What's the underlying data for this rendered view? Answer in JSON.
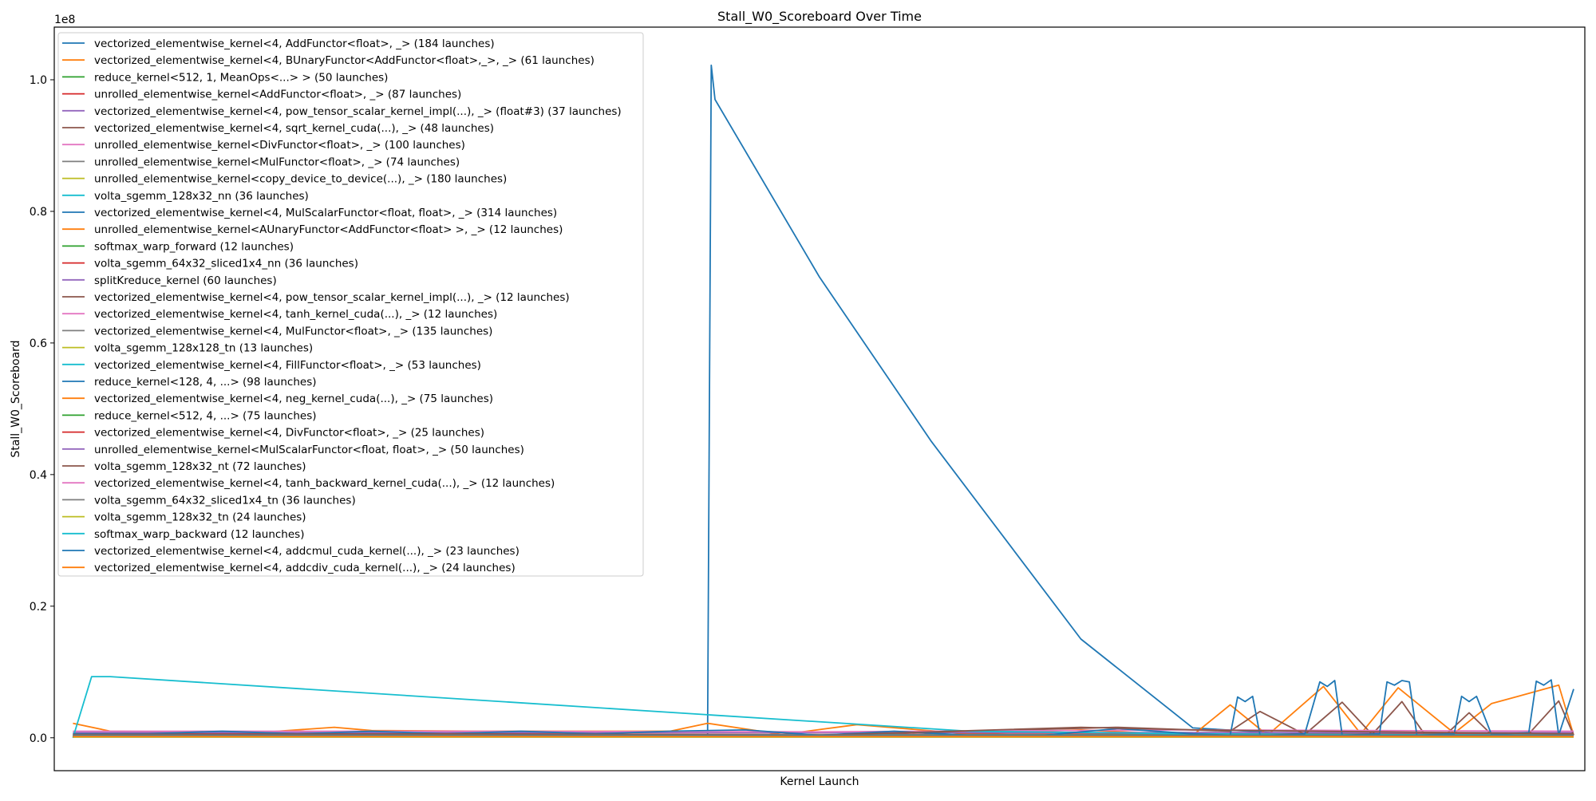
{
  "chart_data": {
    "type": "line",
    "title": "Stall_W0_Scoreboard Over Time",
    "xlabel": "Kernel Launch",
    "ylabel": "Stall_W0_Scoreboard",
    "y_scale_label": "1e8",
    "ylim": [
      -0.05,
      1.08
    ],
    "yticks": [
      0.0,
      0.2,
      0.4,
      0.6,
      0.8,
      1.0
    ],
    "ytick_labels": [
      "0.0",
      "0.2",
      "0.4",
      "0.6",
      "0.8",
      "1.0"
    ],
    "xlim": [
      -5,
      405
    ],
    "xticks": [],
    "grid": false,
    "legend_position": "upper-left",
    "series": [
      {
        "name": "vectorized_elementwise_kernel<4, AddFunctor<float>, _> (184 launches)",
        "color": "#1f77b4",
        "x": [
          0,
          40,
          75,
          110,
          160,
          170,
          171,
          172,
          200,
          230,
          270,
          300,
          330,
          355,
          375,
          398,
          402
        ],
        "y": [
          0.002,
          0.003,
          0.006,
          0.004,
          0.003,
          0.004,
          1.022,
          0.97,
          0.7,
          0.45,
          0.15,
          0.015,
          0.005,
          0.004,
          0.003,
          0.003,
          0.003
        ]
      },
      {
        "name": "vectorized_elementwise_kernel<4, BUnaryFunctor<AddFunctor<float>,_>, _> (61 launches)",
        "color": "#ff7f0e",
        "x": [
          0,
          10,
          50,
          70,
          80,
          110,
          160,
          170,
          190,
          210,
          240,
          270,
          300,
          310,
          320,
          335,
          345,
          355,
          370,
          380,
          398,
          402
        ],
        "y": [
          0.022,
          0.01,
          0.008,
          0.016,
          0.011,
          0.01,
          0.01,
          0.022,
          0.005,
          0.02,
          0.006,
          0.012,
          0.004,
          0.05,
          0.004,
          0.078,
          0.006,
          0.076,
          0.007,
          0.052,
          0.08,
          0.004
        ]
      },
      {
        "name": "reduce_kernel<512, 1, MeanOps<...> > (50 launches)",
        "color": "#2ca02c",
        "x": [
          0,
          100,
          200,
          300,
          402
        ],
        "y": [
          0.003,
          0.003,
          0.003,
          0.003,
          0.003
        ]
      },
      {
        "name": "unrolled_elementwise_kernel<AddFunctor<float>, _> (87 launches)",
        "color": "#d62728",
        "x": [
          0,
          100,
          200,
          300,
          402
        ],
        "y": [
          0.006,
          0.006,
          0.005,
          0.006,
          0.006
        ]
      },
      {
        "name": "vectorized_elementwise_kernel<4, pow_tensor_scalar_kernel_impl(...), _> (float#3) (37 launches)",
        "color": "#9467bd",
        "x": [
          0,
          100,
          200,
          300,
          402
        ],
        "y": [
          0.008,
          0.008,
          0.008,
          0.008,
          0.008
        ]
      },
      {
        "name": "vectorized_elementwise_kernel<4, sqrt_kernel_cuda(...), _> (48 launches)",
        "color": "#8c564b",
        "x": [
          0,
          200,
          280,
          310,
          318,
          330,
          340,
          348,
          356,
          362,
          368,
          374,
          380,
          390,
          398,
          402
        ],
        "y": [
          0.004,
          0.004,
          0.016,
          0.01,
          0.04,
          0.005,
          0.054,
          0.005,
          0.055,
          0.006,
          0.006,
          0.038,
          0.005,
          0.006,
          0.056,
          0.004
        ]
      },
      {
        "name": "unrolled_elementwise_kernel<DivFunctor<float>, _> (100 launches)",
        "color": "#e377c2",
        "x": [
          0,
          100,
          200,
          300,
          402
        ],
        "y": [
          0.01,
          0.01,
          0.009,
          0.012,
          0.01
        ]
      },
      {
        "name": "unrolled_elementwise_kernel<MulFunctor<float>, _> (74 launches)",
        "color": "#7f7f7f",
        "x": [
          0,
          100,
          200,
          300,
          402
        ],
        "y": [
          0.005,
          0.005,
          0.005,
          0.005,
          0.005
        ]
      },
      {
        "name": "unrolled_elementwise_kernel<copy_device_to_device(...), _> (180 launches)",
        "color": "#bcbd22",
        "x": [
          0,
          100,
          200,
          300,
          402
        ],
        "y": [
          0.002,
          0.002,
          0.002,
          0.002,
          0.002
        ]
      },
      {
        "name": "volta_sgemm_128x32_nn (36 launches)",
        "color": "#17becf",
        "x": [
          0,
          5,
          10,
          170,
          240,
          300,
          402
        ],
        "y": [
          0.0,
          0.093,
          0.093,
          0.035,
          0.01,
          0.006,
          0.004
        ]
      },
      {
        "name": "vectorized_elementwise_kernel<4, MulScalarFunctor<float, float>, _> (314 launches)",
        "color": "#1f77b4",
        "x": [
          0,
          20,
          40,
          60,
          80,
          100,
          120,
          140,
          160,
          180,
          200,
          220,
          240,
          260,
          280,
          300,
          310,
          312,
          314,
          316,
          318,
          320,
          330,
          334,
          336,
          338,
          340,
          350,
          352,
          354,
          356,
          358,
          360,
          370,
          372,
          374,
          376,
          380,
          390,
          392,
          394,
          396,
          398,
          402
        ],
        "y": [
          0.006,
          0.006,
          0.01,
          0.006,
          0.01,
          0.006,
          0.01,
          0.006,
          0.01,
          0.012,
          0.004,
          0.01,
          0.004,
          0.004,
          0.014,
          0.006,
          0.004,
          0.062,
          0.055,
          0.063,
          0.004,
          0.004,
          0.006,
          0.085,
          0.078,
          0.087,
          0.004,
          0.006,
          0.085,
          0.08,
          0.087,
          0.085,
          0.004,
          0.006,
          0.063,
          0.055,
          0.063,
          0.005,
          0.008,
          0.086,
          0.08,
          0.088,
          0.004,
          0.074
        ]
      },
      {
        "name": "unrolled_elementwise_kernel<AUnaryFunctor<AddFunctor<float> >, _> (12 launches)",
        "color": "#ff7f0e",
        "x": [
          0,
          100,
          200,
          300,
          402
        ],
        "y": [
          0.003,
          0.004,
          0.003,
          0.004,
          0.003
        ]
      },
      {
        "name": "softmax_warp_forward (12 launches)",
        "color": "#2ca02c",
        "x": [
          0,
          100,
          200,
          300,
          402
        ],
        "y": [
          0.004,
          0.004,
          0.004,
          0.004,
          0.004
        ]
      },
      {
        "name": "volta_sgemm_64x32_sliced1x4_nn (36 launches)",
        "color": "#d62728",
        "x": [
          0,
          100,
          200,
          300,
          402
        ],
        "y": [
          0.002,
          0.002,
          0.002,
          0.002,
          0.002
        ]
      },
      {
        "name": "splitKreduce_kernel (60 launches)",
        "color": "#9467bd",
        "x": [
          0,
          100,
          200,
          300,
          402
        ],
        "y": [
          0.001,
          0.001,
          0.001,
          0.001,
          0.001
        ]
      },
      {
        "name": "vectorized_elementwise_kernel<4, pow_tensor_scalar_kernel_impl(...), _> (12 launches)",
        "color": "#8c564b",
        "x": [
          0,
          100,
          200,
          270,
          300,
          402
        ],
        "y": [
          0.005,
          0.006,
          0.004,
          0.016,
          0.012,
          0.006
        ]
      },
      {
        "name": "vectorized_elementwise_kernel<4, tanh_kernel_cuda(...), _> (12 launches)",
        "color": "#e377c2",
        "x": [
          0,
          100,
          200,
          300,
          402
        ],
        "y": [
          0.003,
          0.003,
          0.003,
          0.003,
          0.003
        ]
      },
      {
        "name": "vectorized_elementwise_kernel<4, MulFunctor<float>, _> (135 launches)",
        "color": "#7f7f7f",
        "x": [
          0,
          100,
          200,
          300,
          402
        ],
        "y": [
          0.004,
          0.004,
          0.004,
          0.004,
          0.004
        ]
      },
      {
        "name": "volta_sgemm_128x128_tn (13 launches)",
        "color": "#bcbd22",
        "x": [
          0,
          100,
          200,
          300,
          402
        ],
        "y": [
          0.001,
          0.001,
          0.001,
          0.001,
          0.001
        ]
      },
      {
        "name": "vectorized_elementwise_kernel<4, FillFunctor<float>, _> (53 launches)",
        "color": "#17becf",
        "x": [
          0,
          100,
          200,
          300,
          402
        ],
        "y": [
          0.002,
          0.002,
          0.002,
          0.002,
          0.002
        ]
      },
      {
        "name": "reduce_kernel<128, 4, ...> (98 launches)",
        "color": "#1f77b4",
        "x": [
          0,
          100,
          200,
          300,
          402
        ],
        "y": [
          0.003,
          0.003,
          0.003,
          0.003,
          0.003
        ]
      },
      {
        "name": "vectorized_elementwise_kernel<4, neg_kernel_cuda(...), _> (75 launches)",
        "color": "#ff7f0e",
        "x": [
          0,
          100,
          200,
          300,
          402
        ],
        "y": [
          0.002,
          0.002,
          0.002,
          0.002,
          0.002
        ]
      },
      {
        "name": "reduce_kernel<512, 4, ...> (75 launches)",
        "color": "#2ca02c",
        "x": [
          0,
          100,
          200,
          300,
          402
        ],
        "y": [
          0.002,
          0.002,
          0.002,
          0.002,
          0.002
        ]
      },
      {
        "name": "vectorized_elementwise_kernel<4, DivFunctor<float>, _> (25 launches)",
        "color": "#d62728",
        "x": [
          0,
          100,
          200,
          300,
          402
        ],
        "y": [
          0.002,
          0.002,
          0.002,
          0.002,
          0.002
        ]
      },
      {
        "name": "unrolled_elementwise_kernel<MulScalarFunctor<float, float>, _> (50 launches)",
        "color": "#9467bd",
        "x": [
          0,
          100,
          200,
          300,
          402
        ],
        "y": [
          0.002,
          0.002,
          0.002,
          0.002,
          0.002
        ]
      },
      {
        "name": "volta_sgemm_128x32_nt (72 launches)",
        "color": "#8c564b",
        "x": [
          0,
          100,
          200,
          300,
          402
        ],
        "y": [
          0.002,
          0.002,
          0.002,
          0.002,
          0.002
        ]
      },
      {
        "name": "vectorized_elementwise_kernel<4, tanh_backward_kernel_cuda(...), _> (12 launches)",
        "color": "#e377c2",
        "x": [
          0,
          100,
          200,
          300,
          402
        ],
        "y": [
          0.002,
          0.002,
          0.002,
          0.002,
          0.002
        ]
      },
      {
        "name": "volta_sgemm_64x32_sliced1x4_tn (36 launches)",
        "color": "#7f7f7f",
        "x": [
          0,
          100,
          200,
          300,
          402
        ],
        "y": [
          0.002,
          0.002,
          0.002,
          0.002,
          0.002
        ]
      },
      {
        "name": "volta_sgemm_128x32_tn (24 launches)",
        "color": "#bcbd22",
        "x": [
          0,
          100,
          200,
          300,
          402
        ],
        "y": [
          0.002,
          0.002,
          0.002,
          0.002,
          0.002
        ]
      },
      {
        "name": "softmax_warp_backward (12 launches)",
        "color": "#17becf",
        "x": [
          0,
          100,
          200,
          300,
          402
        ],
        "y": [
          0.002,
          0.002,
          0.002,
          0.002,
          0.002
        ]
      },
      {
        "name": "vectorized_elementwise_kernel<4, addcmul_cuda_kernel(...), _> (23 launches)",
        "color": "#1f77b4",
        "x": [
          0,
          100,
          200,
          300,
          402
        ],
        "y": [
          0.002,
          0.002,
          0.002,
          0.002,
          0.002
        ]
      },
      {
        "name": "vectorized_elementwise_kernel<4, addcdiv_cuda_kernel(...), _> (24 launches)",
        "color": "#ff7f0e",
        "x": [
          0,
          100,
          200,
          300,
          402
        ],
        "y": [
          0.002,
          0.002,
          0.002,
          0.002,
          0.002
        ]
      }
    ]
  }
}
